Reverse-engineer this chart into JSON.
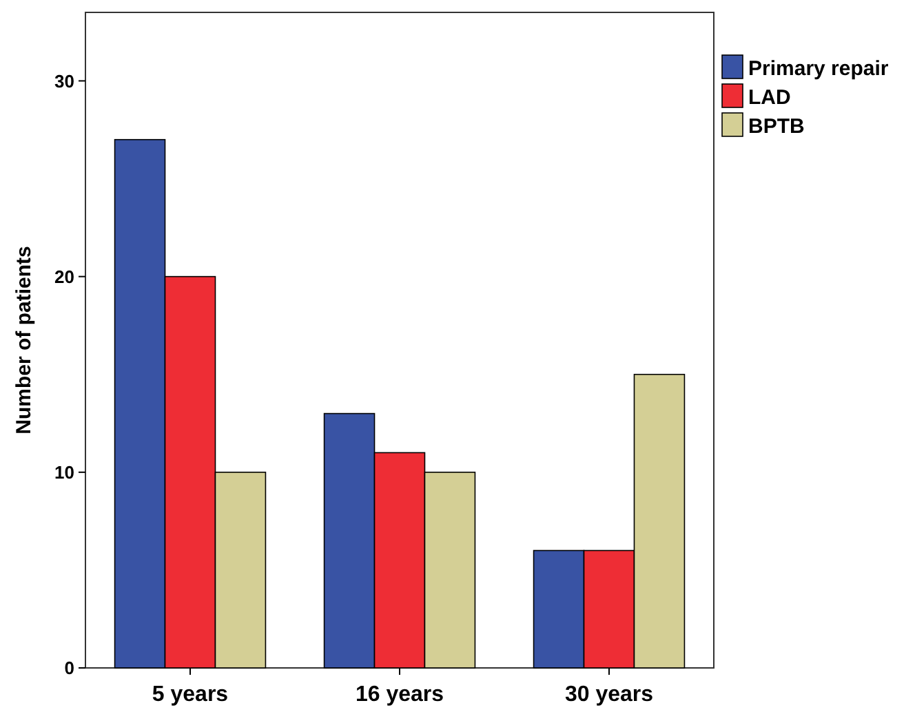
{
  "chart_data": {
    "type": "bar",
    "ylabel": "Number of patients",
    "categories": [
      "5 years",
      "16 years",
      "30 years"
    ],
    "series": [
      {
        "name": "Primary repair",
        "color": "#3953a4",
        "values": [
          27,
          13,
          6
        ]
      },
      {
        "name": "LAD",
        "color": "#ee2d35",
        "values": [
          20,
          11,
          6
        ]
      },
      {
        "name": "BPTB",
        "color": "#d4cf95",
        "values": [
          10,
          10,
          15
        ]
      }
    ],
    "ylim": [
      0,
      33.5
    ],
    "yticks": [
      0,
      10,
      20,
      30
    ],
    "legend": "top right"
  }
}
